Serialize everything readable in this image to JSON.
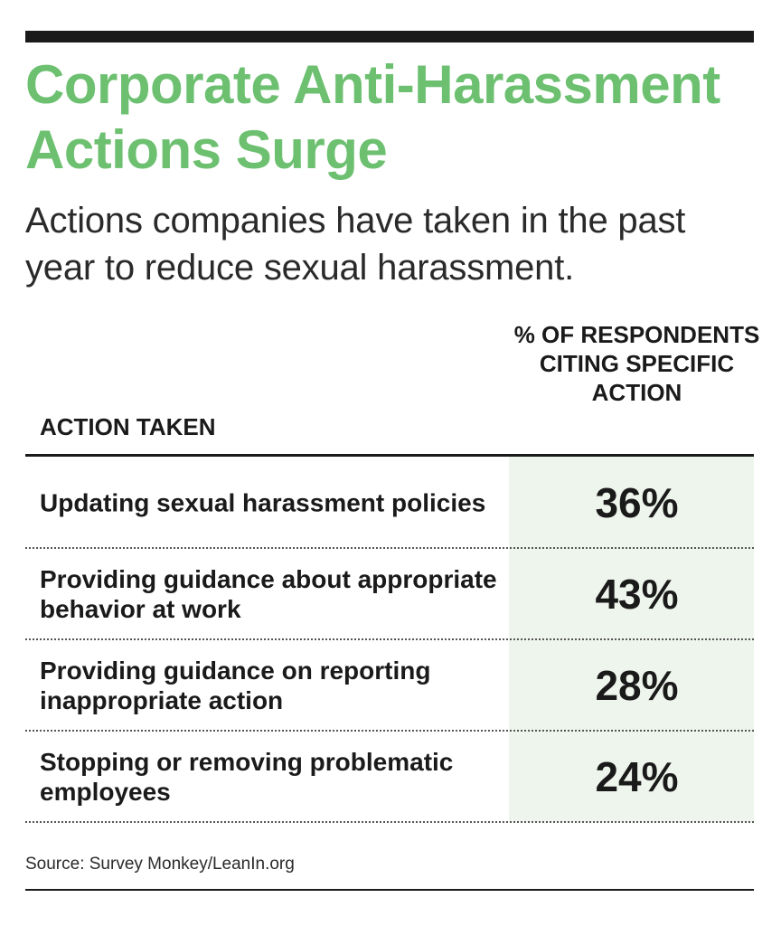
{
  "title": "Corporate Anti-Harassment Actions Surge",
  "subtitle": "Actions companies have taken in the past year to reduce sexual harassment.",
  "source": "Source: Survey Monkey/LeanIn.org",
  "colors": {
    "title": "#6cc070",
    "value_band": "#eef5ec",
    "text": "#1a1a1a"
  },
  "chart_data": {
    "type": "table",
    "title": "Corporate Anti-Harassment Actions Surge",
    "subtitle": "Actions companies have taken in the past year to reduce sexual harassment.",
    "columns": [
      "ACTION TAKEN",
      "% OF RESPONDENTS CITING SPECIFIC ACTION"
    ],
    "rows": [
      {
        "action": "Updating sexual harassment policies",
        "value": 36,
        "display": "36%"
      },
      {
        "action": "Providing guidance about appropriate behavior at work",
        "value": 43,
        "display": "43%"
      },
      {
        "action": "Providing guidance on reporting inappropriate action",
        "value": 28,
        "display": "28%"
      },
      {
        "action": "Stopping or removing problematic employees",
        "value": 24,
        "display": "24%"
      }
    ],
    "source": "Source: Survey Monkey/LeanIn.org"
  }
}
